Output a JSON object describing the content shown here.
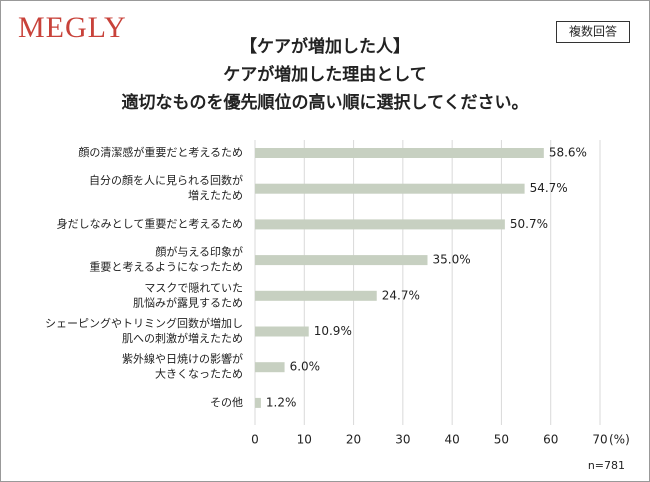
{
  "brand": "MEGLY",
  "badge": "複数回答",
  "note": "n=781",
  "chart_data": {
    "type": "hbar",
    "title": [
      "【ケアが増加した人】",
      "ケアが増加した理由として",
      "適切なものを優先順位の高い順に選択してください。"
    ],
    "categories": [
      [
        "顔の清潔感が重要だと考えるため"
      ],
      [
        "自分の顔を人に見られる回数が",
        "増えたため"
      ],
      [
        "身だしなみとして重要だと考えるため"
      ],
      [
        "顔が与える印象が",
        "重要と考えるようになったため"
      ],
      [
        "マスクで隠れていた",
        "肌悩みが露見するため"
      ],
      [
        "シェーピングやトリミング回数が増加し",
        "肌への刺激が増えたため"
      ],
      [
        "紫外線や日焼けの影響が",
        "大きくなったため"
      ],
      [
        "その他"
      ]
    ],
    "values": [
      58.6,
      54.7,
      50.7,
      35.0,
      24.7,
      10.9,
      6.0,
      1.2
    ],
    "value_labels": [
      "58.6%",
      "54.7%",
      "50.7%",
      "35.0%",
      "24.7%",
      "10.9%",
      "6.0%",
      "1.2%"
    ],
    "color": "#c7d0c1",
    "xlim": [
      0,
      70
    ],
    "xticks": [
      0,
      10,
      20,
      30,
      40,
      50,
      60,
      70
    ],
    "x_unit": "(%)",
    "grid": true
  }
}
